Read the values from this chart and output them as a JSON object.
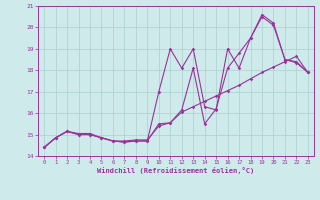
{
  "xlabel": "Windchill (Refroidissement éolien,°C)",
  "bg_color": "#ceeaea",
  "grid_color": "#aacfcf",
  "line_color": "#993399",
  "spine_color": "#7700aa",
  "xlim": [
    -0.5,
    23.5
  ],
  "ylim": [
    14,
    21
  ],
  "yticks": [
    14,
    15,
    16,
    17,
    18,
    19,
    20,
    21
  ],
  "xticks": [
    0,
    1,
    2,
    3,
    4,
    5,
    6,
    7,
    8,
    9,
    10,
    11,
    12,
    13,
    14,
    15,
    16,
    17,
    18,
    19,
    20,
    21,
    22,
    23
  ],
  "series1_x": [
    0,
    1,
    2,
    3,
    4,
    5,
    6,
    7,
    8,
    9,
    10,
    11,
    12,
    13,
    14,
    15,
    16,
    17,
    18,
    19,
    20,
    21,
    22,
    23
  ],
  "series1_y": [
    14.4,
    14.85,
    15.15,
    15.0,
    15.0,
    14.85,
    14.7,
    14.7,
    14.75,
    14.75,
    15.4,
    15.55,
    16.05,
    16.3,
    16.55,
    16.8,
    17.05,
    17.3,
    17.6,
    17.9,
    18.15,
    18.4,
    18.65,
    17.9
  ],
  "series2_x": [
    0,
    1,
    2,
    3,
    4,
    5,
    6,
    7,
    8,
    9,
    10,
    11,
    12,
    13,
    14,
    15,
    16,
    17,
    18,
    19,
    20,
    21,
    22,
    23
  ],
  "series2_y": [
    14.4,
    14.85,
    15.15,
    15.0,
    15.0,
    14.85,
    14.7,
    14.65,
    14.7,
    14.7,
    15.5,
    15.55,
    16.15,
    18.1,
    15.5,
    16.2,
    18.1,
    18.8,
    19.5,
    20.5,
    20.1,
    18.5,
    18.4,
    17.9
  ],
  "series3_x": [
    0,
    1,
    2,
    3,
    4,
    5,
    6,
    7,
    8,
    9,
    10,
    11,
    12,
    13,
    14,
    15,
    16,
    17,
    18,
    19,
    20,
    21,
    22,
    23
  ],
  "series3_y": [
    14.4,
    14.85,
    15.15,
    15.05,
    15.05,
    14.85,
    14.7,
    14.65,
    14.7,
    14.7,
    17.0,
    19.0,
    18.1,
    19.0,
    16.3,
    16.15,
    19.0,
    18.1,
    19.5,
    20.6,
    20.2,
    18.5,
    18.35,
    17.9
  ],
  "marker_size": 1.8,
  "line_width": 0.8
}
